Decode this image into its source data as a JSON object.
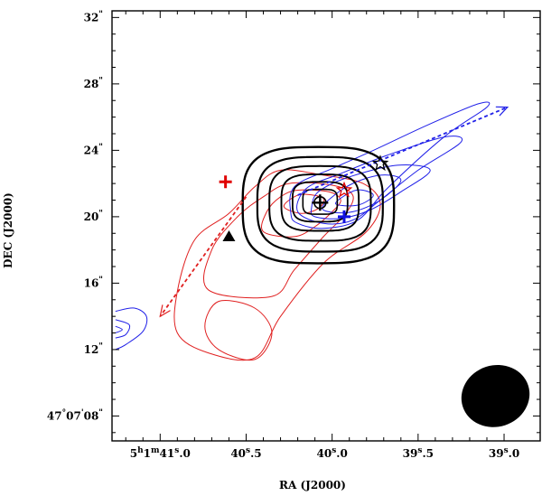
{
  "chart_data": {
    "type": "contour",
    "xlabel": "RA (J2000)",
    "ylabel": "DEC (J2000)",
    "xlim_seconds": [
      41.28,
      38.79
    ],
    "ylim_arcsec": [
      6.5,
      32.4
    ],
    "x_ticks": [
      {
        "value": 41.0,
        "label": "5h1m41s.0",
        "parts": {
          "h": "5",
          "m": "1",
          "s": "41",
          "frac": ".0"
        }
      },
      {
        "value": 40.5,
        "label": "40s.5",
        "parts": {
          "s": "40",
          "frac": ".5"
        }
      },
      {
        "value": 40.0,
        "label": "40s.0",
        "parts": {
          "s": "40",
          "frac": ".0"
        }
      },
      {
        "value": 39.5,
        "label": "39s.5",
        "parts": {
          "s": "39",
          "frac": ".5"
        }
      },
      {
        "value": 39.0,
        "label": "39s.0",
        "parts": {
          "s": "39",
          "frac": ".0"
        }
      }
    ],
    "y_ticks": [
      {
        "value": 32,
        "label": "32\""
      },
      {
        "value": 28,
        "label": "28\""
      },
      {
        "value": 24,
        "label": "24\""
      },
      {
        "value": 20,
        "label": "20\""
      },
      {
        "value": 16,
        "label": "16\""
      },
      {
        "value": 12,
        "label": "12\""
      },
      {
        "value": 8,
        "label": "47°07'08\"",
        "parts": {
          "deg": "47",
          "min": "07",
          "sec": "08"
        }
      }
    ],
    "black_contours": [
      {
        "cx": 40.08,
        "cy": 20.7,
        "rx": 0.44,
        "ry": 3.5,
        "width": 2.4,
        "round": 0.62
      },
      {
        "cx": 40.07,
        "cy": 20.75,
        "rx": 0.365,
        "ry": 2.85,
        "width": 2.2,
        "round": 0.62
      },
      {
        "cx": 40.07,
        "cy": 20.8,
        "rx": 0.295,
        "ry": 2.25,
        "width": 2.0,
        "round": 0.6
      },
      {
        "cx": 40.07,
        "cy": 20.85,
        "rx": 0.225,
        "ry": 1.7,
        "width": 1.9,
        "round": 0.58
      },
      {
        "cx": 40.07,
        "cy": 20.9,
        "rx": 0.16,
        "ry": 1.2,
        "width": 1.8,
        "round": 0.55
      },
      {
        "cx": 40.07,
        "cy": 20.9,
        "rx": 0.1,
        "ry": 0.75,
        "width": 1.6,
        "round": 0.5
      }
    ],
    "blue_contours": [
      [
        [
          40.24,
          20.2
        ],
        [
          40.22,
          21.8
        ],
        [
          40.0,
          22.9
        ],
        [
          39.78,
          23.9
        ],
        [
          39.45,
          25.5
        ],
        [
          39.15,
          26.8
        ],
        [
          39.1,
          26.6
        ],
        [
          39.35,
          24.8
        ],
        [
          39.68,
          21.7
        ],
        [
          39.85,
          19.8
        ],
        [
          40.05,
          19.3
        ],
        [
          40.2,
          19.6
        ],
        [
          40.24,
          20.2
        ]
      ],
      [
        [
          40.2,
          20.3
        ],
        [
          40.15,
          21.7
        ],
        [
          39.95,
          22.6
        ],
        [
          39.68,
          23.7
        ],
        [
          39.35,
          24.8
        ],
        [
          39.25,
          24.5
        ],
        [
          39.5,
          22.8
        ],
        [
          39.72,
          21.0
        ],
        [
          39.88,
          19.8
        ],
        [
          40.05,
          19.6
        ],
        [
          40.2,
          20.3
        ]
      ],
      [
        [
          40.12,
          20.5
        ],
        [
          40.08,
          21.5
        ],
        [
          39.9,
          22.4
        ],
        [
          39.62,
          23.1
        ],
        [
          39.43,
          22.8
        ],
        [
          39.6,
          21.5
        ],
        [
          39.78,
          20.4
        ],
        [
          39.95,
          19.9
        ],
        [
          40.1,
          20.0
        ],
        [
          40.12,
          20.5
        ]
      ],
      [
        [
          40.05,
          20.7
        ],
        [
          39.9,
          21.9
        ],
        [
          39.72,
          22.5
        ],
        [
          39.6,
          22.2
        ],
        [
          39.72,
          21.0
        ],
        [
          39.88,
          20.3
        ],
        [
          40.02,
          20.3
        ],
        [
          40.05,
          20.7
        ]
      ],
      [
        [
          39.98,
          20.8
        ],
        [
          39.86,
          21.6
        ],
        [
          39.76,
          21.3
        ],
        [
          39.85,
          20.7
        ],
        [
          39.98,
          20.8
        ]
      ],
      [
        [
          41.26,
          14.3
        ],
        [
          41.15,
          14.5
        ],
        [
          41.08,
          14.0
        ],
        [
          41.1,
          13.1
        ],
        [
          41.2,
          12.3
        ],
        [
          41.26,
          12.0
        ]
      ],
      [
        [
          41.26,
          13.8
        ],
        [
          41.18,
          13.5
        ],
        [
          41.2,
          12.9
        ],
        [
          41.26,
          12.7
        ]
      ],
      [
        [
          41.26,
          13.4
        ],
        [
          41.22,
          13.2
        ],
        [
          41.26,
          13.0
        ]
      ]
    ],
    "red_contours": [
      [
        [
          40.3,
          22.8
        ],
        [
          40.05,
          22.5
        ],
        [
          39.82,
          22.0
        ],
        [
          39.72,
          20.8
        ],
        [
          39.8,
          19.1
        ],
        [
          40.05,
          17.2
        ],
        [
          40.3,
          14.0
        ],
        [
          40.45,
          11.5
        ],
        [
          40.72,
          11.8
        ],
        [
          40.9,
          13.0
        ],
        [
          40.9,
          15.5
        ],
        [
          40.8,
          18.6
        ],
        [
          40.6,
          20.2
        ],
        [
          40.45,
          21.8
        ],
        [
          40.3,
          22.8
        ]
      ],
      [
        [
          40.25,
          22.0
        ],
        [
          40.0,
          21.9
        ],
        [
          39.88,
          21.3
        ],
        [
          39.92,
          20.2
        ],
        [
          40.05,
          18.8
        ],
        [
          40.22,
          16.8
        ],
        [
          40.35,
          15.2
        ],
        [
          40.72,
          15.6
        ],
        [
          40.7,
          18.0
        ],
        [
          40.55,
          20.0
        ],
        [
          40.4,
          21.2
        ],
        [
          40.25,
          22.0
        ]
      ],
      [
        [
          40.2,
          21.6
        ],
        [
          40.02,
          21.5
        ],
        [
          39.95,
          21.0
        ],
        [
          40.0,
          20.3
        ],
        [
          40.1,
          19.4
        ],
        [
          40.22,
          18.8
        ],
        [
          40.4,
          19.1
        ],
        [
          40.38,
          20.3
        ],
        [
          40.3,
          21.2
        ],
        [
          40.2,
          21.6
        ]
      ],
      [
        [
          40.15,
          21.35
        ],
        [
          40.05,
          21.1
        ],
        [
          40.08,
          20.5
        ],
        [
          40.18,
          20.2
        ],
        [
          40.28,
          20.6
        ],
        [
          40.22,
          21.2
        ],
        [
          40.15,
          21.35
        ]
      ],
      [
        [
          40.45,
          11.4
        ],
        [
          40.35,
          13.0
        ],
        [
          40.45,
          14.5
        ],
        [
          40.66,
          14.9
        ],
        [
          40.74,
          13.4
        ],
        [
          40.66,
          12.0
        ],
        [
          40.45,
          11.4
        ]
      ]
    ],
    "blue_arrow": {
      "from": [
        40.2,
        21.3
      ],
      "to": [
        38.98,
        26.6
      ]
    },
    "red_arrow": {
      "from": [
        40.5,
        21.2
      ],
      "to": [
        41.0,
        14.0
      ]
    },
    "markers": [
      {
        "kind": "cross",
        "color": "#e00000",
        "ra": 40.62,
        "dec": 22.1
      },
      {
        "kind": "cross",
        "color": "#1010e0",
        "ra": 39.93,
        "dec": 20.0
      },
      {
        "kind": "circle-cross",
        "color": "#000000",
        "ra": 40.07,
        "dec": 20.85
      },
      {
        "kind": "star",
        "color": "#e00000",
        "ra": 39.93,
        "dec": 21.6
      },
      {
        "kind": "star",
        "color": "#000000",
        "ra": 39.72,
        "dec": 23.2
      },
      {
        "kind": "triangle",
        "color": "#000000",
        "ra": 40.6,
        "dec": 18.8
      }
    ],
    "beam": {
      "ra": 39.05,
      "dec": 9.2,
      "rx": 0.2,
      "ry": 1.85,
      "angle": -18
    },
    "colors": {
      "blue": "#2020e8",
      "red": "#e02020",
      "black": "#000000"
    }
  }
}
